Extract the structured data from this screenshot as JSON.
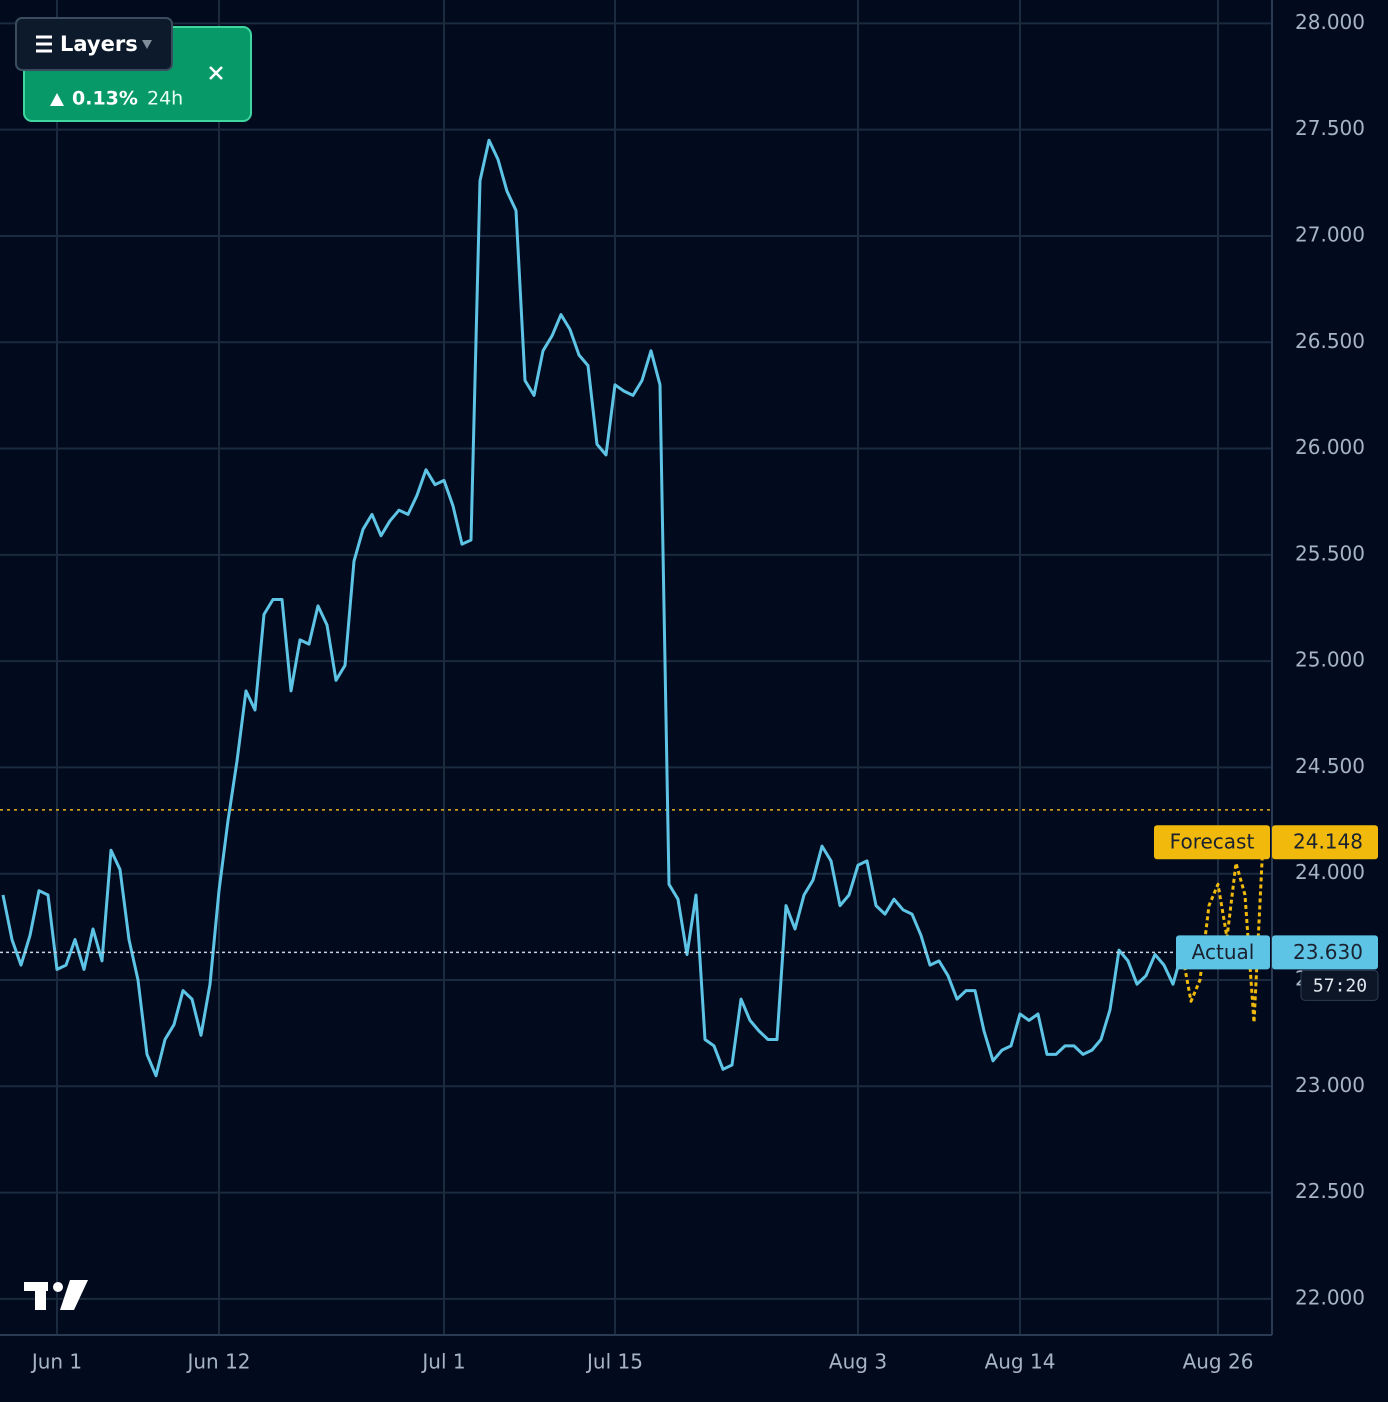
{
  "chart_data": {
    "type": "line",
    "categories": [
      null,
      null,
      null,
      null,
      null,
      null,
      "Jun 1",
      null,
      null,
      null,
      null,
      null,
      null,
      null,
      null,
      null,
      null,
      null,
      null,
      null,
      null,
      null,
      null,
      null,
      "Jun 12",
      null,
      null,
      null,
      null,
      null,
      null,
      null,
      null,
      null,
      null,
      null,
      null,
      null,
      null,
      null,
      null,
      null,
      null,
      null,
      null,
      null,
      null,
      null,
      null,
      "Jul 1",
      null,
      null,
      null,
      null,
      null,
      null,
      null,
      null,
      null,
      null,
      null,
      null,
      null,
      null,
      null,
      null,
      null,
      null,
      "Jul 15",
      null,
      null,
      null,
      null,
      null,
      null,
      null,
      null,
      null,
      null,
      null,
      null,
      null,
      null,
      null,
      null,
      null,
      null,
      null,
      null,
      null,
      null,
      null,
      null,
      null,
      null,
      "Aug 3",
      null,
      null,
      null,
      null,
      null,
      null,
      null,
      null,
      null,
      null,
      null,
      null,
      null,
      null,
      null,
      null,
      null,
      "Aug 14",
      null,
      null,
      null,
      null,
      null,
      null,
      null,
      null,
      null,
      null,
      null,
      null,
      null,
      null,
      null,
      null,
      null,
      null,
      null,
      null,
      null,
      "Aug 26",
      null,
      null,
      null,
      null,
      null
    ],
    "series": [
      {
        "name": "Actual",
        "color": "#5ec4e6",
        "dashed": false,
        "values": [
          23.9,
          23.69,
          23.57,
          23.71,
          23.92,
          23.9,
          23.55,
          23.57,
          23.69,
          23.55,
          23.74,
          23.59,
          24.11,
          24.02,
          23.69,
          23.5,
          23.15,
          23.05,
          23.22,
          23.29,
          23.45,
          23.41,
          23.24,
          23.48,
          23.92,
          24.25,
          24.53,
          24.86,
          24.77,
          25.22,
          25.29,
          25.29,
          24.86,
          25.1,
          25.08,
          25.26,
          25.17,
          24.91,
          24.98,
          25.47,
          25.62,
          25.69,
          25.59,
          25.66,
          25.71,
          25.69,
          25.78,
          25.9,
          25.83,
          25.85,
          25.73,
          25.55,
          25.57,
          27.26,
          27.45,
          27.36,
          27.21,
          27.12,
          26.32,
          26.25,
          26.46,
          26.53,
          26.63,
          26.56,
          26.44,
          26.39,
          26.02,
          25.97,
          26.3,
          26.27,
          26.25,
          26.32,
          26.46,
          26.3,
          23.95,
          23.88,
          23.62,
          23.9,
          23.22,
          23.19,
          23.08,
          23.1,
          23.41,
          23.31,
          23.26,
          23.22,
          23.22,
          23.85,
          23.74,
          23.9,
          23.97,
          24.13,
          24.06,
          23.85,
          23.9,
          24.04,
          24.06,
          23.85,
          23.81,
          23.88,
          23.83,
          23.81,
          23.71,
          23.57,
          23.59,
          23.52,
          23.41,
          23.45,
          23.45,
          23.26,
          23.12,
          23.17,
          23.19,
          23.34,
          23.31,
          23.34,
          23.15,
          23.15,
          23.19,
          23.19,
          23.15,
          23.17,
          23.22,
          23.36,
          23.64,
          23.59,
          23.48,
          23.52,
          23.62,
          23.57,
          23.48,
          23.63,
          null,
          null,
          null,
          null,
          null,
          null,
          null,
          null,
          null
        ],
        "value_labels": [
          null,
          null,
          null,
          null,
          null,
          null,
          null,
          null,
          null,
          null,
          null,
          null,
          null,
          null,
          null,
          null,
          null,
          null,
          null,
          null,
          null,
          null,
          null,
          null,
          null,
          null,
          null,
          null,
          null,
          null,
          null,
          null,
          null,
          null,
          null,
          null,
          null,
          null,
          null,
          null,
          null,
          null,
          null,
          null,
          null,
          null,
          null,
          null,
          null,
          null,
          null,
          null,
          null,
          null,
          null,
          null,
          null,
          null,
          null,
          null,
          null,
          null,
          null,
          null,
          null,
          null,
          null,
          null,
          null,
          null,
          null,
          null,
          null,
          null,
          null,
          null,
          null,
          null,
          null,
          null,
          null,
          null,
          null,
          null,
          null,
          null,
          null,
          null,
          null,
          null,
          null,
          null,
          null,
          null,
          null,
          null,
          null,
          null,
          null,
          null,
          null,
          null,
          null,
          null,
          null,
          null,
          null,
          null,
          null,
          null,
          null,
          null,
          null,
          null,
          null,
          null,
          null,
          null,
          null,
          null,
          null,
          null,
          null,
          null,
          null,
          null,
          null,
          null,
          null,
          null,
          null,
          "23.630",
          null,
          null,
          null,
          null,
          null,
          null,
          null,
          null,
          null
        ]
      },
      {
        "name": "Forecast",
        "color": "#f0b90b",
        "dashed": true,
        "values": [
          null,
          null,
          null,
          null,
          null,
          null,
          null,
          null,
          null,
          null,
          null,
          null,
          null,
          null,
          null,
          null,
          null,
          null,
          null,
          null,
          null,
          null,
          null,
          null,
          null,
          null,
          null,
          null,
          null,
          null,
          null,
          null,
          null,
          null,
          null,
          null,
          null,
          null,
          null,
          null,
          null,
          null,
          null,
          null,
          null,
          null,
          null,
          null,
          null,
          null,
          null,
          null,
          null,
          null,
          null,
          null,
          null,
          null,
          null,
          null,
          null,
          null,
          null,
          null,
          null,
          null,
          null,
          null,
          null,
          null,
          null,
          null,
          null,
          null,
          null,
          null,
          null,
          null,
          null,
          null,
          null,
          null,
          null,
          null,
          null,
          null,
          null,
          null,
          null,
          null,
          null,
          null,
          null,
          null,
          null,
          null,
          null,
          null,
          null,
          null,
          null,
          null,
          null,
          null,
          null,
          null,
          null,
          null,
          null,
          null,
          null,
          null,
          null,
          null,
          null,
          null,
          null,
          null,
          null,
          null,
          null,
          null,
          null,
          null,
          null,
          null,
          null,
          null,
          null,
          null,
          null,
          23.63,
          23.4,
          23.5,
          23.85,
          23.95,
          23.7,
          24.05,
          23.9,
          23.3,
          24.148
        ],
        "value_labels": [
          null,
          null,
          null,
          null,
          null,
          null,
          null,
          null,
          null,
          null,
          null,
          null,
          null,
          null,
          null,
          null,
          null,
          null,
          null,
          null,
          null,
          null,
          null,
          null,
          null,
          null,
          null,
          null,
          null,
          null,
          null,
          null,
          null,
          null,
          null,
          null,
          null,
          null,
          null,
          null,
          null,
          null,
          null,
          null,
          null,
          null,
          null,
          null,
          null,
          null,
          null,
          null,
          null,
          null,
          null,
          null,
          null,
          null,
          null,
          null,
          null,
          null,
          null,
          null,
          null,
          null,
          null,
          null,
          null,
          null,
          null,
          null,
          null,
          null,
          null,
          null,
          null,
          null,
          null,
          null,
          null,
          null,
          null,
          null,
          null,
          null,
          null,
          null,
          null,
          null,
          null,
          null,
          null,
          null,
          null,
          null,
          null,
          null,
          null,
          null,
          null,
          null,
          null,
          null,
          null,
          null,
          null,
          null,
          null,
          null,
          null,
          null,
          null,
          null,
          null,
          null,
          null,
          null,
          null,
          null,
          null,
          null,
          null,
          null,
          null,
          null,
          null,
          null,
          null,
          null,
          null,
          null,
          null,
          null,
          null,
          null,
          null,
          null,
          null,
          null,
          "24.148"
        ]
      }
    ],
    "ylim": [
      21.83,
      28.11
    ],
    "yticks": [
      {
        "value": 22,
        "label": "22.000"
      },
      {
        "value": 22.5,
        "label": "22.500"
      },
      {
        "value": 23,
        "label": "23.000"
      },
      {
        "value": 23.5,
        "label": "23.500"
      },
      {
        "value": 24,
        "label": "24.000"
      },
      {
        "value": 24.5,
        "label": "24.500"
      },
      {
        "value": 25,
        "label": "25.000"
      },
      {
        "value": 25.5,
        "label": "25.500"
      },
      {
        "value": 26,
        "label": "26.000"
      },
      {
        "value": 26.5,
        "label": "26.500"
      },
      {
        "value": 27,
        "label": "27.000"
      },
      {
        "value": 27.5,
        "label": "27.500"
      },
      {
        "value": 28,
        "label": "28.000"
      }
    ],
    "grid": true,
    "hlines": [
      {
        "value": 24.3,
        "color": "#e8b21a"
      }
    ],
    "countdown": "57:20"
  },
  "ui": {
    "layers_button": "Layers",
    "ticker": {
      "change": "0.13%",
      "period": "24h"
    }
  }
}
